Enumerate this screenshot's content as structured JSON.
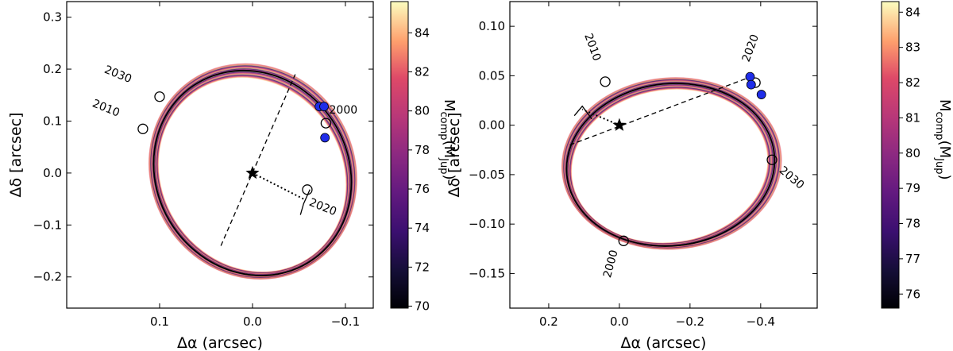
{
  "figure": {
    "panels": 2
  },
  "chart_data": [
    {
      "type": "scatter",
      "panel": "left",
      "title": "",
      "xlabel": "Δα (arcsec)",
      "ylabel": "Δδ [arcsec]",
      "xlim": [
        0.2,
        -0.13
      ],
      "ylim": [
        -0.26,
        0.33
      ],
      "x_ticks": [
        0.1,
        0.0,
        -0.1
      ],
      "x_tick_labels": [
        "0.1",
        "0.0",
        "−0.1"
      ],
      "y_ticks": [
        -0.2,
        -0.1,
        0.0,
        0.1,
        0.2,
        0.3
      ],
      "y_tick_labels": [
        "−0.2",
        "−0.1",
        "0.0",
        "0.1",
        "0.2",
        "0.3"
      ],
      "colorbar": {
        "label": "M_comp (M_Jup)",
        "label_main": "M",
        "label_sub1": "comp",
        "label_mid": "(M",
        "label_sub2": "Jup",
        "label_end": ")",
        "range": [
          69.9,
          85.6
        ],
        "ticks": [
          70,
          72,
          74,
          76,
          78,
          80,
          82,
          84
        ],
        "tick_labels": [
          "70",
          "72",
          "74",
          "76",
          "78",
          "80",
          "82",
          "84"
        ],
        "colormap": "magma"
      },
      "orbit": {
        "center": [
          0.0,
          0.0
        ],
        "semi_axes": [
          0.103,
          0.203
        ],
        "rotation_deg": 34
      },
      "primary_star": [
        0.0,
        0.0
      ],
      "line_of_nodes": [
        [
          0.034,
          -0.14
        ],
        [
          -0.046,
          0.19
        ]
      ],
      "periastron_line": [
        [
          0.0,
          0.0
        ],
        [
          -0.055,
          -0.05
        ]
      ],
      "observations": [
        [
          -0.072,
          0.128
        ],
        [
          -0.077,
          0.128
        ],
        [
          -0.078,
          0.068
        ]
      ],
      "epoch_markers": [
        {
          "label": "2000",
          "pos": [
            -0.079,
            0.096
          ]
        },
        {
          "label": "2010",
          "pos": [
            0.118,
            0.085
          ]
        },
        {
          "label": "2020",
          "pos": [
            -0.059,
            -0.032
          ]
        },
        {
          "label": "2030",
          "pos": [
            0.1,
            0.147
          ]
        }
      ]
    },
    {
      "type": "scatter",
      "panel": "right",
      "title": "",
      "xlabel": "Δα (arcsec)",
      "ylabel": "Δδ [arcsec]",
      "xlim": [
        0.31,
        -0.56
      ],
      "ylim": [
        -0.185,
        0.125
      ],
      "x_ticks": [
        0.2,
        0.0,
        -0.2,
        -0.4
      ],
      "x_tick_labels": [
        "0.2",
        "0.0",
        "−0.2",
        "−0.4"
      ],
      "y_ticks": [
        -0.15,
        -0.1,
        -0.05,
        0.0,
        0.05,
        0.1
      ],
      "y_tick_labels": [
        "−0.15",
        "−0.10",
        "−0.05",
        "0.00",
        "0.05",
        "0.10"
      ],
      "colorbar": {
        "label": "M_comp (M_Jup)",
        "label_main": "M",
        "label_sub1": "comp",
        "label_mid": "(M",
        "label_sub2": "Jup",
        "label_end": ")",
        "range": [
          75.6,
          84.3
        ],
        "ticks": [
          76,
          77,
          78,
          79,
          80,
          81,
          82,
          83,
          84
        ],
        "tick_labels": [
          "76",
          "77",
          "78",
          "79",
          "80",
          "81",
          "82",
          "83",
          "84"
        ],
        "colormap": "magma"
      },
      "orbit": {
        "center": [
          -0.145,
          -0.04
        ],
        "semi_axes": [
          0.295,
          0.082
        ],
        "rotation_deg": 6
      },
      "primary_star": [
        0.0,
        0.0
      ],
      "line_of_nodes": [
        [
          0.14,
          -0.02
        ],
        [
          -0.38,
          0.05
        ]
      ],
      "periastron_line": [
        [
          0.0,
          0.0
        ],
        [
          0.105,
          0.016
        ]
      ],
      "observations": [
        [
          -0.37,
          0.049
        ],
        [
          -0.373,
          0.041
        ],
        [
          -0.402,
          0.031
        ]
      ],
      "epoch_markers": [
        {
          "label": "2000",
          "pos": [
            -0.012,
            -0.117
          ]
        },
        {
          "label": "2010",
          "pos": [
            0.04,
            0.044
          ]
        },
        {
          "label": "2020",
          "pos": [
            -0.385,
            0.043
          ]
        },
        {
          "label": "2030",
          "pos": [
            -0.432,
            -0.035
          ]
        }
      ]
    }
  ]
}
